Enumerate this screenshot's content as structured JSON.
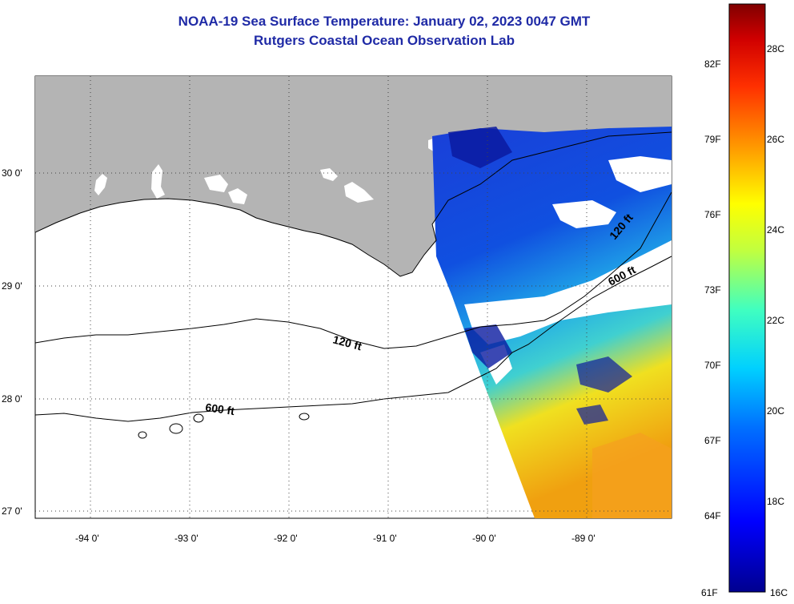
{
  "title_line1": "NOAA-19 Sea Surface Temperature:  January 02, 2023 0047 GMT",
  "title_line2": "Rutgers Coastal Ocean Observation Lab",
  "map": {
    "lon_labels": [
      "-94 0'",
      "-93 0'",
      "-92 0'",
      "-91 0'",
      "-90 0'",
      "-89 0'"
    ],
    "lat_labels": [
      "30 0'",
      "29 0'",
      "28 0'",
      "27 0'"
    ],
    "isobath_labels": {
      "a": "120 ft",
      "b": "600 ft",
      "c": "600 ft",
      "d": "120 ft"
    },
    "colors": {
      "land": "#b4b4b4",
      "no_data": "#ffffff",
      "grid": "#555555"
    }
  },
  "colorbar": {
    "fahrenheit_labels": [
      "82F",
      "79F",
      "76F",
      "73F",
      "70F",
      "67F",
      "64F",
      "61F"
    ],
    "celsius_labels": [
      "28C",
      "26C",
      "24C",
      "22C",
      "20C",
      "18C",
      "16C"
    ],
    "colormap": "jet"
  }
}
